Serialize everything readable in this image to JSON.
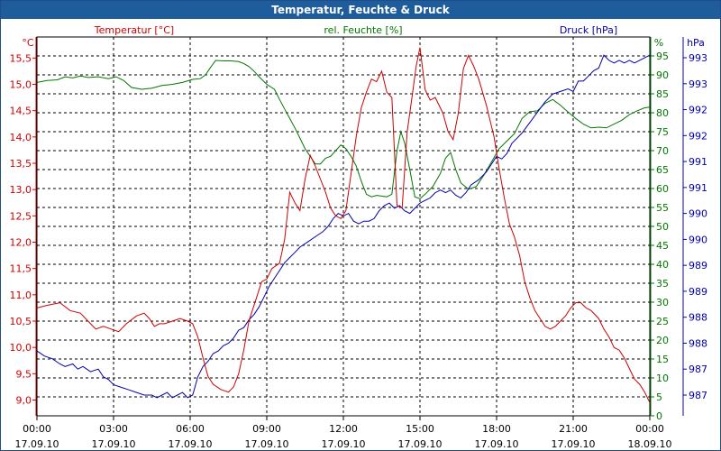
{
  "window_title": "Temperatur, Feuchte & Druck",
  "colors": {
    "temperature": "#cc0000",
    "humidity": "#007700",
    "pressure": "#0000aa",
    "title_bar": "#1f5c9b",
    "grid": "#000000"
  },
  "chart_data": {
    "type": "line",
    "title": "Temperatur, Feuchte & Druck",
    "series_labels": {
      "temperature": "Temperatur [°C]",
      "humidity": "rel. Feuchte [%]",
      "pressure": "Druck [hPa]"
    },
    "unit_labels": {
      "temperature": "°C",
      "humidity": "%",
      "pressure": "hPa"
    },
    "x_hours_range": [
      0,
      24
    ],
    "x_ticks": [
      {
        "h": 0,
        "time": "00:00",
        "date": "17.09.10"
      },
      {
        "h": 3,
        "time": "03:00",
        "date": "17.09.10"
      },
      {
        "h": 6,
        "time": "06:00",
        "date": "17.09.10"
      },
      {
        "h": 9,
        "time": "09:00",
        "date": "17.09.10"
      },
      {
        "h": 12,
        "time": "12:00",
        "date": "17.09.10"
      },
      {
        "h": 15,
        "time": "15:00",
        "date": "17.09.10"
      },
      {
        "h": 18,
        "time": "18:00",
        "date": "17.09.10"
      },
      {
        "h": 21,
        "time": "21:00",
        "date": "17.09.10"
      },
      {
        "h": 24,
        "time": "00:00",
        "date": "18.09.10"
      }
    ],
    "temperature_axis": {
      "min": 8.7,
      "max": 15.9,
      "ticks": [
        {
          "v": 9.0,
          "label": "9,0"
        },
        {
          "v": 9.5,
          "label": "9,5"
        },
        {
          "v": 10.0,
          "label": "10,0"
        },
        {
          "v": 10.5,
          "label": "10,5"
        },
        {
          "v": 11.0,
          "label": "11,0"
        },
        {
          "v": 11.5,
          "label": "11,5"
        },
        {
          "v": 12.0,
          "label": "12,0"
        },
        {
          "v": 12.5,
          "label": "12,5"
        },
        {
          "v": 13.0,
          "label": "13,0"
        },
        {
          "v": 13.5,
          "label": "13,5"
        },
        {
          "v": 14.0,
          "label": "14,0"
        },
        {
          "v": 14.5,
          "label": "14,5"
        },
        {
          "v": 15.0,
          "label": "15,0"
        },
        {
          "v": 15.5,
          "label": "15,5"
        }
      ]
    },
    "humidity_axis": {
      "min": 0,
      "max": 100,
      "ticks": [
        "0",
        "5",
        "10",
        "15",
        "20",
        "25",
        "30",
        "35",
        "40",
        "45",
        "50",
        "55",
        "60",
        "65",
        "70",
        "75",
        "80",
        "85",
        "90",
        "95"
      ]
    },
    "pressure_axis": {
      "min": 986.6,
      "max": 993.9,
      "ticks": [
        {
          "v": 987.0,
          "label": "987"
        },
        {
          "v": 987.5,
          "label": "987"
        },
        {
          "v": 988.0,
          "label": "988"
        },
        {
          "v": 988.5,
          "label": "988"
        },
        {
          "v": 989.0,
          "label": "989"
        },
        {
          "v": 989.5,
          "label": "989"
        },
        {
          "v": 990.0,
          "label": "990"
        },
        {
          "v": 990.5,
          "label": "990"
        },
        {
          "v": 991.0,
          "label": "991"
        },
        {
          "v": 991.5,
          "label": "991"
        },
        {
          "v": 992.0,
          "label": "992"
        },
        {
          "v": 992.5,
          "label": "992"
        },
        {
          "v": 993.0,
          "label": "993"
        },
        {
          "v": 993.5,
          "label": "993"
        }
      ]
    },
    "grid": true,
    "temperature": [
      [
        0,
        10.75
      ],
      [
        0.4,
        10.8
      ],
      [
        0.9,
        10.85
      ],
      [
        1.3,
        10.7
      ],
      [
        1.7,
        10.65
      ],
      [
        2.0,
        10.5
      ],
      [
        2.3,
        10.35
      ],
      [
        2.6,
        10.4
      ],
      [
        2.9,
        10.35
      ],
      [
        3.2,
        10.3
      ],
      [
        3.5,
        10.45
      ],
      [
        3.9,
        10.6
      ],
      [
        4.2,
        10.65
      ],
      [
        4.4,
        10.55
      ],
      [
        4.6,
        10.4
      ],
      [
        4.8,
        10.45
      ],
      [
        5.0,
        10.45
      ],
      [
        5.3,
        10.5
      ],
      [
        5.6,
        10.55
      ],
      [
        5.9,
        10.5
      ],
      [
        6.1,
        10.45
      ],
      [
        6.3,
        10.2
      ],
      [
        6.5,
        9.8
      ],
      [
        6.7,
        9.45
      ],
      [
        6.9,
        9.3
      ],
      [
        7.2,
        9.2
      ],
      [
        7.5,
        9.15
      ],
      [
        7.7,
        9.25
      ],
      [
        7.9,
        9.5
      ],
      [
        8.1,
        9.95
      ],
      [
        8.3,
        10.5
      ],
      [
        8.6,
        10.95
      ],
      [
        8.8,
        11.25
      ],
      [
        9.0,
        11.3
      ],
      [
        9.2,
        11.5
      ],
      [
        9.5,
        11.6
      ],
      [
        9.7,
        12.05
      ],
      [
        9.9,
        12.95
      ],
      [
        10.1,
        12.75
      ],
      [
        10.3,
        12.6
      ],
      [
        10.5,
        13.2
      ],
      [
        10.7,
        13.65
      ],
      [
        10.9,
        13.45
      ],
      [
        11.1,
        13.2
      ],
      [
        11.3,
        12.95
      ],
      [
        11.5,
        12.65
      ],
      [
        11.7,
        12.5
      ],
      [
        11.9,
        12.45
      ],
      [
        12.1,
        12.6
      ],
      [
        12.3,
        13.3
      ],
      [
        12.5,
        14.0
      ],
      [
        12.7,
        14.55
      ],
      [
        12.9,
        14.85
      ],
      [
        13.1,
        15.1
      ],
      [
        13.3,
        15.05
      ],
      [
        13.5,
        15.25
      ],
      [
        13.7,
        14.85
      ],
      [
        13.9,
        14.75
      ],
      [
        14.1,
        12.7
      ],
      [
        14.3,
        12.65
      ],
      [
        14.5,
        14.1
      ],
      [
        14.7,
        14.8
      ],
      [
        14.85,
        15.35
      ],
      [
        15.0,
        15.7
      ],
      [
        15.2,
        14.9
      ],
      [
        15.4,
        14.7
      ],
      [
        15.6,
        14.75
      ],
      [
        15.9,
        14.45
      ],
      [
        16.1,
        14.1
      ],
      [
        16.3,
        13.95
      ],
      [
        16.5,
        14.45
      ],
      [
        16.7,
        15.3
      ],
      [
        16.9,
        15.55
      ],
      [
        17.1,
        15.35
      ],
      [
        17.3,
        15.1
      ],
      [
        17.6,
        14.6
      ],
      [
        17.9,
        14.0
      ],
      [
        18.1,
        13.4
      ],
      [
        18.3,
        12.85
      ],
      [
        18.5,
        12.35
      ],
      [
        18.7,
        12.1
      ],
      [
        18.9,
        11.75
      ],
      [
        19.1,
        11.25
      ],
      [
        19.3,
        10.95
      ],
      [
        19.5,
        10.7
      ],
      [
        19.7,
        10.55
      ],
      [
        19.9,
        10.4
      ],
      [
        20.1,
        10.35
      ],
      [
        20.3,
        10.4
      ],
      [
        20.5,
        10.5
      ],
      [
        20.7,
        10.6
      ],
      [
        20.9,
        10.75
      ],
      [
        21.1,
        10.85
      ],
      [
        21.3,
        10.85
      ],
      [
        21.5,
        10.75
      ],
      [
        21.7,
        10.7
      ],
      [
        22.0,
        10.55
      ],
      [
        22.2,
        10.35
      ],
      [
        22.4,
        10.2
      ],
      [
        22.6,
        10.0
      ],
      [
        22.8,
        9.95
      ],
      [
        23.0,
        9.8
      ],
      [
        23.2,
        9.6
      ],
      [
        23.4,
        9.4
      ],
      [
        23.6,
        9.3
      ],
      [
        23.8,
        9.15
      ],
      [
        24.0,
        8.95
      ]
    ],
    "humidity": [
      [
        0,
        88
      ],
      [
        0.4,
        88.5
      ],
      [
        0.8,
        88.7
      ],
      [
        1.1,
        89.5
      ],
      [
        1.4,
        89.2
      ],
      [
        1.7,
        89.7
      ],
      [
        2.0,
        89.3
      ],
      [
        2.4,
        89.5
      ],
      [
        2.8,
        89
      ],
      [
        3.1,
        89.5
      ],
      [
        3.4,
        88.5
      ],
      [
        3.7,
        86.7
      ],
      [
        4.1,
        86.2
      ],
      [
        4.5,
        86.5
      ],
      [
        4.9,
        87.2
      ],
      [
        5.3,
        87.5
      ],
      [
        5.7,
        88
      ],
      [
        6.1,
        88.8
      ],
      [
        6.4,
        89
      ],
      [
        6.6,
        90
      ],
      [
        6.8,
        92
      ],
      [
        7.0,
        93.8
      ],
      [
        7.3,
        93.7
      ],
      [
        7.6,
        93.7
      ],
      [
        7.9,
        93.5
      ],
      [
        8.1,
        93
      ],
      [
        8.3,
        92.2
      ],
      [
        8.5,
        91
      ],
      [
        8.7,
        89.5
      ],
      [
        9.0,
        87.5
      ],
      [
        9.3,
        86.2
      ],
      [
        9.5,
        83.5
      ],
      [
        9.7,
        81
      ],
      [
        9.9,
        78.5
      ],
      [
        10.1,
        76
      ],
      [
        10.3,
        73.3
      ],
      [
        10.5,
        70.5
      ],
      [
        10.7,
        68.5
      ],
      [
        10.9,
        66.5
      ],
      [
        11.1,
        66.5
      ],
      [
        11.3,
        68
      ],
      [
        11.5,
        68.5
      ],
      [
        11.7,
        70
      ],
      [
        11.9,
        71.5
      ],
      [
        12.1,
        70.5
      ],
      [
        12.3,
        68.5
      ],
      [
        12.5,
        66
      ],
      [
        12.7,
        62
      ],
      [
        12.9,
        58.5
      ],
      [
        13.1,
        57.8
      ],
      [
        13.3,
        58.2
      ],
      [
        13.5,
        58
      ],
      [
        13.7,
        57.8
      ],
      [
        13.9,
        58.5
      ],
      [
        14.1,
        70
      ],
      [
        14.25,
        75
      ],
      [
        14.4,
        72
      ],
      [
        14.6,
        65
      ],
      [
        14.8,
        57.8
      ],
      [
        15.0,
        57.3
      ],
      [
        15.2,
        58.5
      ],
      [
        15.5,
        60.5
      ],
      [
        15.8,
        64
      ],
      [
        16.0,
        68
      ],
      [
        16.2,
        69.5
      ],
      [
        16.4,
        65
      ],
      [
        16.6,
        61.5
      ],
      [
        16.9,
        59.8
      ],
      [
        17.2,
        60.5
      ],
      [
        17.5,
        63.5
      ],
      [
        17.8,
        67
      ],
      [
        18.1,
        70.5
      ],
      [
        18.4,
        72.5
      ],
      [
        18.7,
        74.5
      ],
      [
        19.0,
        78.5
      ],
      [
        19.3,
        80.3
      ],
      [
        19.6,
        80.5
      ],
      [
        19.9,
        82.5
      ],
      [
        20.2,
        83.5
      ],
      [
        20.5,
        82
      ],
      [
        20.8,
        80.2
      ],
      [
        21.1,
        78.5
      ],
      [
        21.4,
        77
      ],
      [
        21.7,
        76
      ],
      [
        22.0,
        76.2
      ],
      [
        22.3,
        76
      ],
      [
        22.6,
        77
      ],
      [
        22.9,
        78
      ],
      [
        23.2,
        79.5
      ],
      [
        23.5,
        80.5
      ],
      [
        23.8,
        81.3
      ],
      [
        24.0,
        81.5
      ]
    ],
    "pressure": [
      [
        0,
        987.85
      ],
      [
        0.3,
        987.75
      ],
      [
        0.6,
        987.7
      ],
      [
        0.9,
        987.6
      ],
      [
        1.1,
        987.55
      ],
      [
        1.4,
        987.6
      ],
      [
        1.6,
        987.5
      ],
      [
        1.8,
        987.55
      ],
      [
        2.1,
        987.45
      ],
      [
        2.4,
        987.5
      ],
      [
        2.6,
        987.35
      ],
      [
        2.8,
        987.3
      ],
      [
        3.0,
        987.2
      ],
      [
        3.3,
        987.15
      ],
      [
        3.6,
        987.1
      ],
      [
        3.9,
        987.05
      ],
      [
        4.2,
        987.0
      ],
      [
        4.5,
        987.0
      ],
      [
        4.7,
        986.95
      ],
      [
        4.9,
        987.0
      ],
      [
        5.1,
        987.05
      ],
      [
        5.3,
        986.95
      ],
      [
        5.5,
        987.0
      ],
      [
        5.7,
        987.05
      ],
      [
        5.9,
        986.95
      ],
      [
        6.1,
        987.0
      ],
      [
        6.3,
        987.35
      ],
      [
        6.5,
        987.55
      ],
      [
        6.7,
        987.65
      ],
      [
        6.9,
        987.8
      ],
      [
        7.1,
        987.85
      ],
      [
        7.3,
        987.95
      ],
      [
        7.5,
        988.0
      ],
      [
        7.7,
        988.1
      ],
      [
        7.9,
        988.25
      ],
      [
        8.1,
        988.3
      ],
      [
        8.3,
        988.45
      ],
      [
        8.5,
        988.55
      ],
      [
        8.7,
        988.7
      ],
      [
        8.9,
        988.9
      ],
      [
        9.1,
        989.1
      ],
      [
        9.3,
        989.25
      ],
      [
        9.5,
        989.4
      ],
      [
        9.7,
        989.55
      ],
      [
        9.9,
        989.65
      ],
      [
        10.1,
        989.75
      ],
      [
        10.3,
        989.85
      ],
      [
        10.6,
        989.95
      ],
      [
        10.9,
        990.05
      ],
      [
        11.2,
        990.15
      ],
      [
        11.4,
        990.25
      ],
      [
        11.6,
        990.4
      ],
      [
        11.8,
        990.5
      ],
      [
        12.0,
        990.45
      ],
      [
        12.2,
        990.5
      ],
      [
        12.4,
        990.35
      ],
      [
        12.6,
        990.3
      ],
      [
        12.8,
        990.35
      ],
      [
        13.0,
        990.35
      ],
      [
        13.2,
        990.4
      ],
      [
        13.4,
        990.55
      ],
      [
        13.6,
        990.65
      ],
      [
        13.8,
        990.7
      ],
      [
        14.0,
        990.6
      ],
      [
        14.2,
        990.65
      ],
      [
        14.4,
        990.55
      ],
      [
        14.6,
        990.5
      ],
      [
        14.8,
        990.6
      ],
      [
        15.0,
        990.7
      ],
      [
        15.2,
        990.75
      ],
      [
        15.4,
        990.8
      ],
      [
        15.6,
        990.9
      ],
      [
        15.8,
        990.95
      ],
      [
        16.0,
        990.9
      ],
      [
        16.2,
        990.95
      ],
      [
        16.4,
        990.85
      ],
      [
        16.6,
        990.8
      ],
      [
        16.8,
        990.9
      ],
      [
        17.0,
        991.05
      ],
      [
        17.3,
        991.15
      ],
      [
        17.6,
        991.3
      ],
      [
        17.8,
        991.45
      ],
      [
        18.0,
        991.6
      ],
      [
        18.2,
        991.55
      ],
      [
        18.4,
        991.65
      ],
      [
        18.6,
        991.85
      ],
      [
        18.8,
        991.95
      ],
      [
        19.0,
        992.05
      ],
      [
        19.3,
        992.25
      ],
      [
        19.6,
        992.45
      ],
      [
        19.9,
        992.65
      ],
      [
        20.2,
        992.8
      ],
      [
        20.5,
        992.85
      ],
      [
        20.8,
        992.9
      ],
      [
        21.0,
        992.85
      ],
      [
        21.2,
        993.05
      ],
      [
        21.4,
        993.05
      ],
      [
        21.6,
        993.15
      ],
      [
        21.8,
        993.25
      ],
      [
        22.0,
        993.3
      ],
      [
        22.2,
        993.55
      ],
      [
        22.4,
        993.45
      ],
      [
        22.6,
        993.4
      ],
      [
        22.8,
        993.45
      ],
      [
        23.0,
        993.4
      ],
      [
        23.2,
        993.45
      ],
      [
        23.4,
        993.4
      ],
      [
        23.6,
        993.45
      ],
      [
        24.0,
        993.55
      ]
    ]
  }
}
